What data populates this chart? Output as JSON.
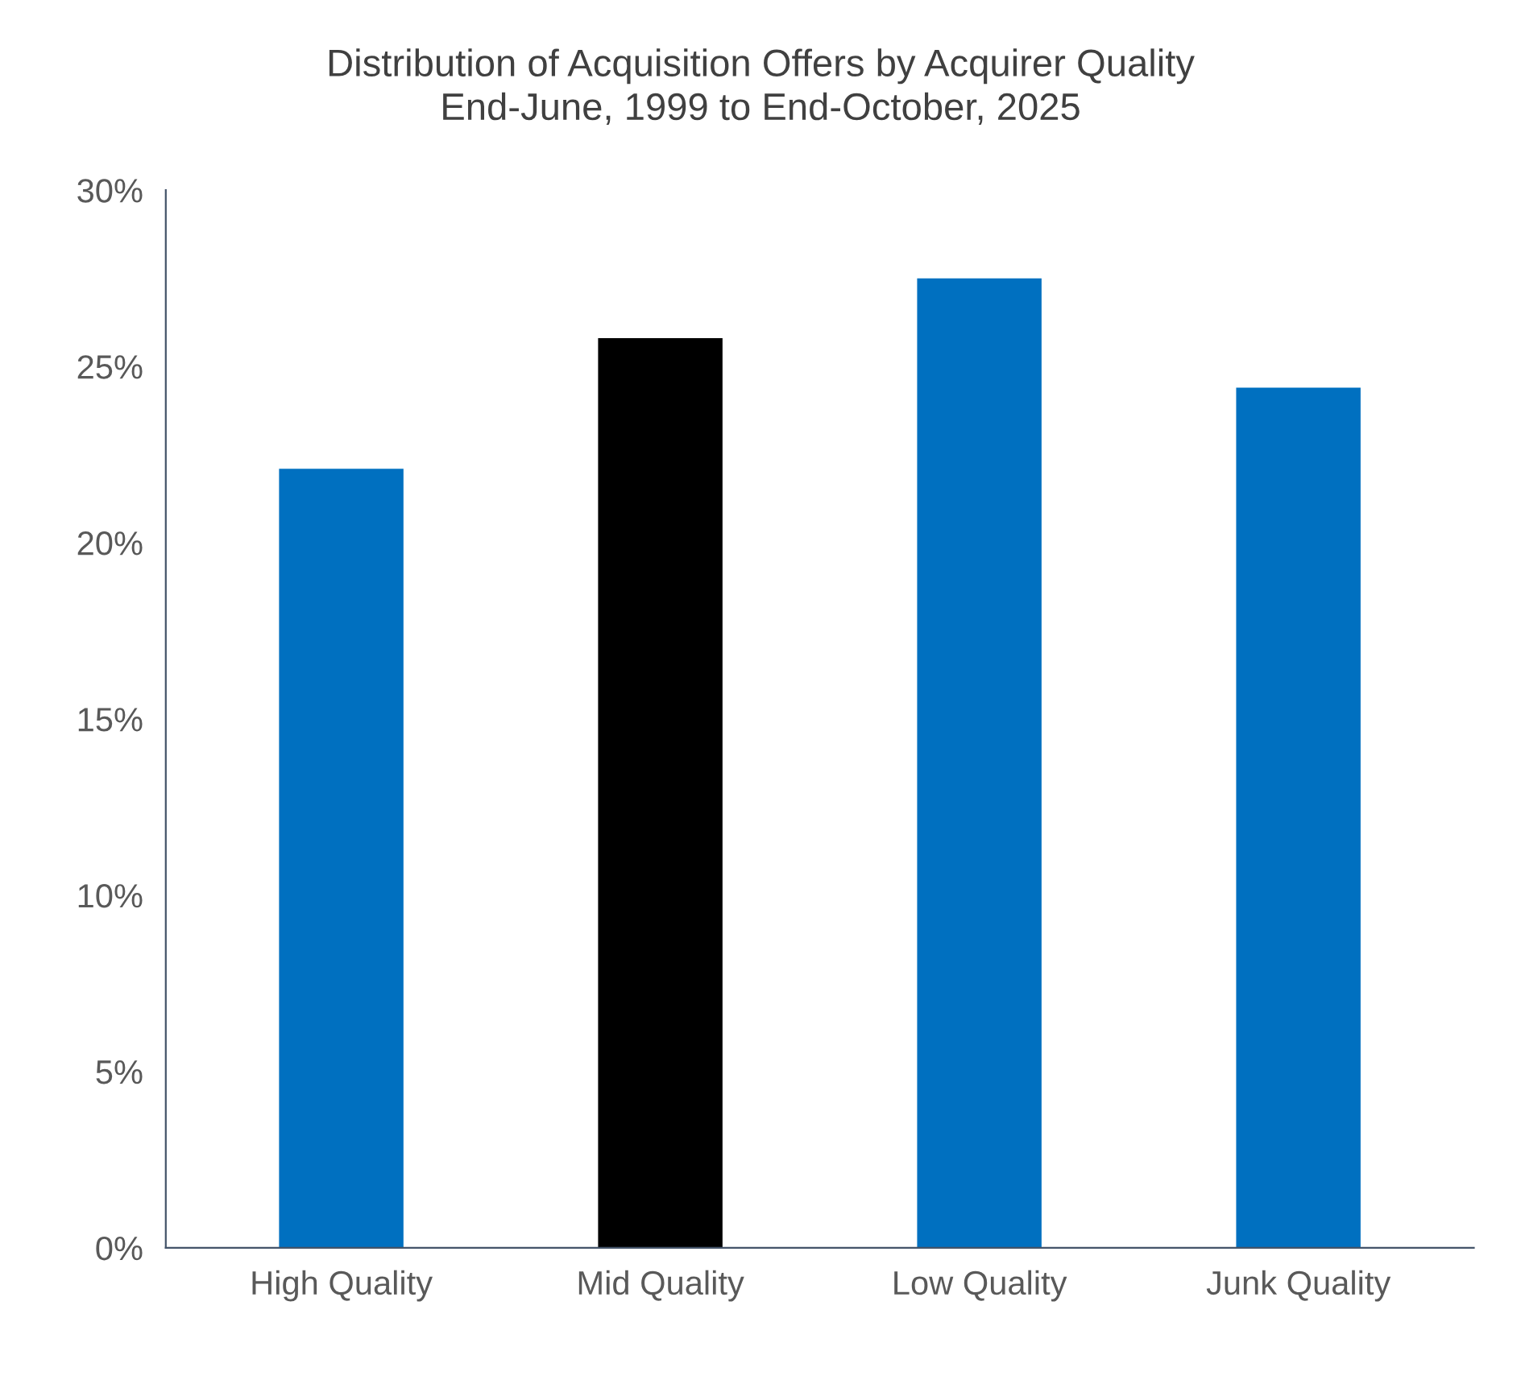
{
  "chart_data": {
    "type": "bar",
    "title": "Distribution of Acquisition Offers by Acquirer Quality\nEnd-June, 1999 to End-October, 2025",
    "categories": [
      "High Quality",
      "Mid Quality",
      "Low Quality",
      "Junk Quality"
    ],
    "values": [
      22.1,
      25.8,
      27.5,
      24.4
    ],
    "colors": [
      "#0070c0",
      "#000000",
      "#0070c0",
      "#0070c0"
    ],
    "ylim": [
      0,
      30
    ],
    "yticks": [
      {
        "value": 0,
        "label": "0%"
      },
      {
        "value": 5,
        "label": "5%"
      },
      {
        "value": 10,
        "label": "10%"
      },
      {
        "value": 15,
        "label": "15%"
      },
      {
        "value": 20,
        "label": "20%"
      },
      {
        "value": 25,
        "label": "25%"
      },
      {
        "value": 30,
        "label": "30%"
      }
    ],
    "grid": false,
    "legend": false
  }
}
